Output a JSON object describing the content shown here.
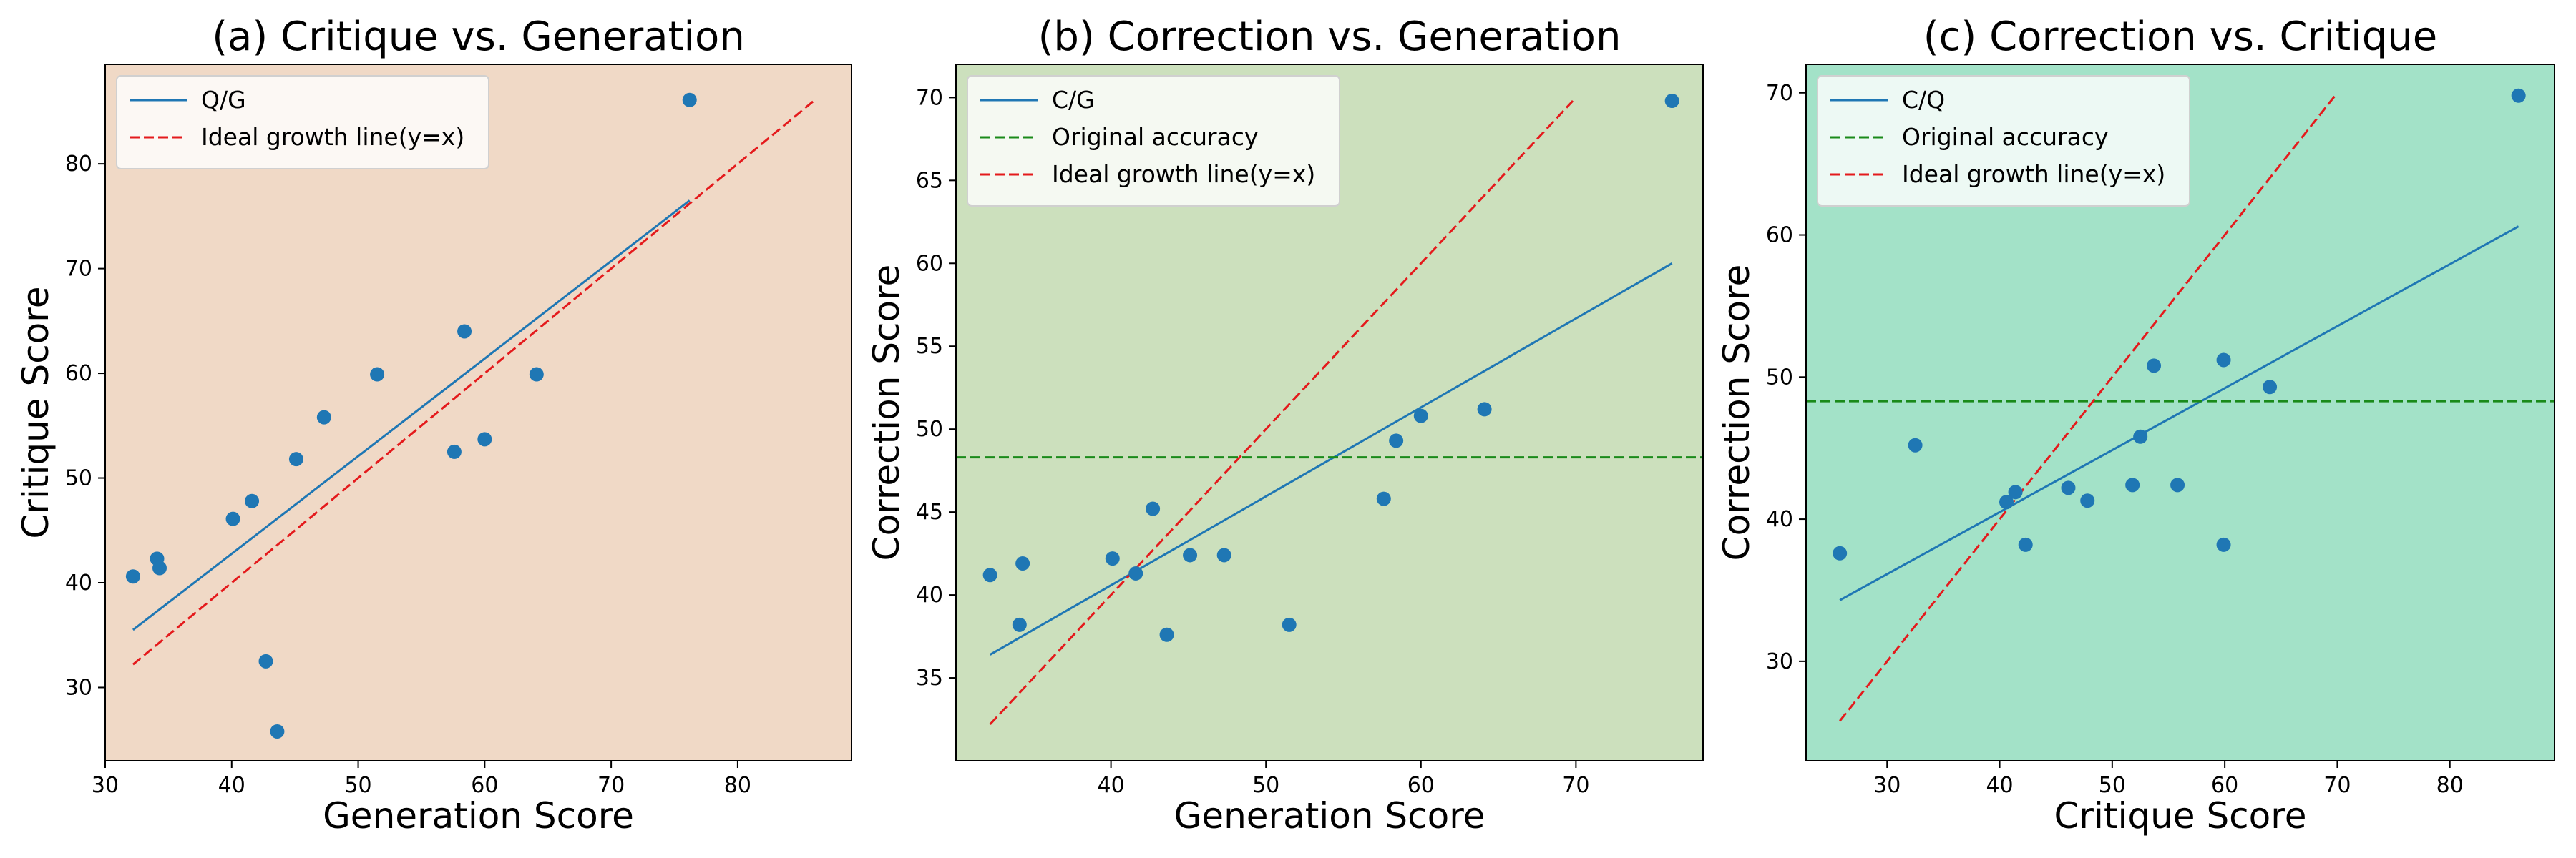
{
  "chart_data": [
    {
      "type": "scatter",
      "title": "(a) Critique vs. Generation",
      "xlabel": "Generation Score",
      "ylabel": "Critique Score",
      "xlim": [
        30.0,
        89.0
      ],
      "ylim": [
        23.0,
        89.5
      ],
      "xticks": [
        30,
        40,
        50,
        60,
        70,
        80
      ],
      "yticks": [
        30,
        40,
        50,
        60,
        70,
        80
      ],
      "background": "#f0d9c6",
      "legend_position": "top-left",
      "points": {
        "color": "#1f77b4",
        "x": [
          32.2,
          34.1,
          34.3,
          40.1,
          41.6,
          42.7,
          43.6,
          45.1,
          47.3,
          51.5,
          57.6,
          58.4,
          60.0,
          64.1,
          76.2
        ],
        "y": [
          40.6,
          42.3,
          41.4,
          46.1,
          47.8,
          32.5,
          25.8,
          51.8,
          55.8,
          59.9,
          52.5,
          64.0,
          53.7,
          59.9,
          86.1
        ]
      },
      "lines": [
        {
          "name": "Q/G",
          "style": "solid",
          "color": "#1f77b4",
          "x": [
            32.2,
            76.2
          ],
          "y": [
            35.5,
            76.5
          ]
        },
        {
          "name": "Ideal growth line(y=x)",
          "style": "dashed",
          "color": "#e41a1c",
          "x": [
            32.2,
            86.1
          ],
          "y": [
            32.2,
            86.1
          ]
        }
      ]
    },
    {
      "type": "scatter",
      "title": "(b) Correction vs. Generation",
      "xlabel": "Generation Score",
      "ylabel": "Correction Score",
      "xlim": [
        30.0,
        78.2
      ],
      "ylim": [
        30.0,
        72.0
      ],
      "xticks": [
        40,
        50,
        60,
        70
      ],
      "yticks": [
        35,
        40,
        45,
        50,
        55,
        60,
        65,
        70
      ],
      "background": "#cce0bd",
      "legend_position": "top-left",
      "points": {
        "color": "#1f77b4",
        "x": [
          32.2,
          34.1,
          34.3,
          40.1,
          41.6,
          42.7,
          43.6,
          45.1,
          47.3,
          51.5,
          57.6,
          58.4,
          60.0,
          64.1,
          76.2
        ],
        "y": [
          41.2,
          38.2,
          41.9,
          42.2,
          41.3,
          45.2,
          37.6,
          42.4,
          42.4,
          38.2,
          45.8,
          49.3,
          50.8,
          51.2,
          69.8
        ]
      },
      "lines": [
        {
          "name": "C/G",
          "style": "solid",
          "color": "#1f77b4",
          "x": [
            32.2,
            76.2
          ],
          "y": [
            36.4,
            60.0
          ]
        },
        {
          "name": "Original accuracy",
          "style": "dashed",
          "color": "#1a8a1a",
          "horizontal": 48.3
        },
        {
          "name": "Ideal growth line(y=x)",
          "style": "dashed",
          "color": "#e41a1c",
          "x": [
            32.2,
            69.8
          ],
          "y": [
            32.2,
            69.8
          ]
        }
      ]
    },
    {
      "type": "scatter",
      "title": "(c) Correction vs. Critique",
      "xlabel": "Critique Score",
      "ylabel": "Correction Score",
      "xlim": [
        22.8,
        89.3
      ],
      "ylim": [
        23.0,
        72.0
      ],
      "xticks": [
        30,
        40,
        50,
        60,
        70,
        80
      ],
      "yticks": [
        30,
        40,
        50,
        60,
        70
      ],
      "background": "#a3e2c8",
      "legend_position": "top-left",
      "points": {
        "color": "#1f77b4",
        "x": [
          25.8,
          32.5,
          40.6,
          41.4,
          42.3,
          46.1,
          47.8,
          51.8,
          52.5,
          53.7,
          55.8,
          59.9,
          59.9,
          64.0,
          86.1
        ],
        "y": [
          37.6,
          45.2,
          41.2,
          41.9,
          38.2,
          42.2,
          41.3,
          42.4,
          45.8,
          50.8,
          42.4,
          51.2,
          38.2,
          49.3,
          69.8
        ]
      },
      "lines": [
        {
          "name": "C/Q",
          "style": "solid",
          "color": "#1f77b4",
          "x": [
            25.8,
            86.1
          ],
          "y": [
            34.3,
            60.6
          ]
        },
        {
          "name": "Original accuracy",
          "style": "dashed",
          "color": "#1a8a1a",
          "horizontal": 48.3
        },
        {
          "name": "Ideal growth line(y=x)",
          "style": "dashed",
          "color": "#e41a1c",
          "x": [
            25.8,
            69.8
          ],
          "y": [
            25.8,
            69.8
          ]
        }
      ]
    }
  ]
}
